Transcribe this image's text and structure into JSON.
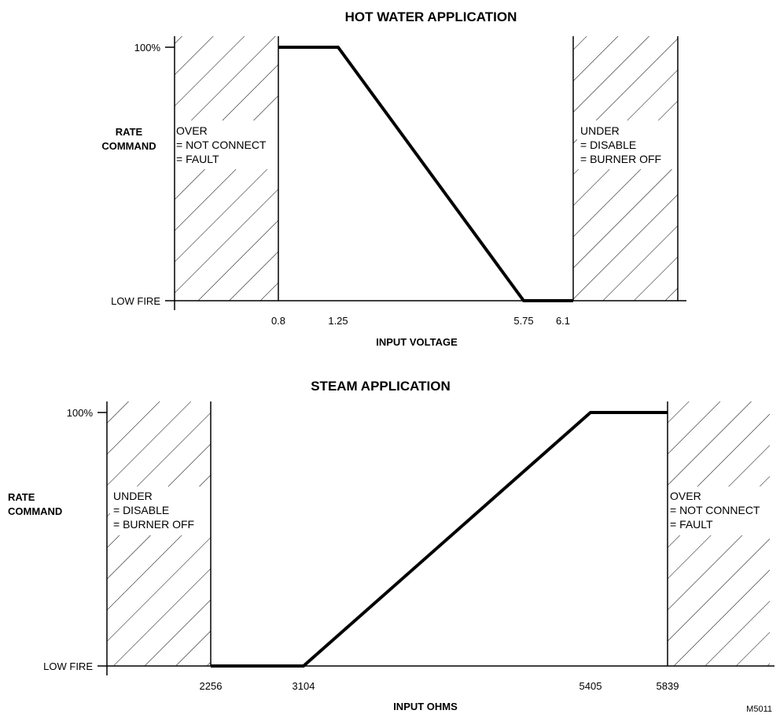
{
  "chart_data": [
    {
      "type": "line",
      "title": "HOT WATER APPLICATION",
      "ylabel": [
        "RATE",
        "COMMAND"
      ],
      "xlabel": "INPUT VOLTAGE",
      "yticks": [
        "100%",
        "LOW FIRE"
      ],
      "xticks": [
        "0.8",
        "1.25",
        "5.75",
        "6.1"
      ],
      "series": [
        {
          "x": [
            0.8,
            1.25,
            5.75,
            6.1
          ],
          "y": [
            100,
            100,
            0,
            0
          ]
        }
      ],
      "regions": [
        {
          "side": "left",
          "lines": [
            "OVER",
            "= NOT CONNECT",
            "= FAULT"
          ]
        },
        {
          "side": "right",
          "lines": [
            "UNDER",
            "= DISABLE",
            "= BURNER OFF"
          ]
        }
      ]
    },
    {
      "type": "line",
      "title": "STEAM APPLICATION",
      "ylabel": [
        "RATE",
        "COMMAND"
      ],
      "xlabel": "INPUT OHMS",
      "yticks": [
        "100%",
        "LOW FIRE"
      ],
      "xticks": [
        "2256",
        "3104",
        "5405",
        "5839"
      ],
      "series": [
        {
          "x": [
            2256,
            3104,
            5405,
            5839
          ],
          "y": [
            0,
            0,
            100,
            100
          ]
        }
      ],
      "regions": [
        {
          "side": "left",
          "lines": [
            "UNDER",
            "= DISABLE",
            "= BURNER OFF"
          ]
        },
        {
          "side": "right",
          "lines": [
            "OVER",
            "= NOT CONNECT",
            "= FAULT"
          ]
        }
      ]
    }
  ],
  "figure_id": "M5011"
}
